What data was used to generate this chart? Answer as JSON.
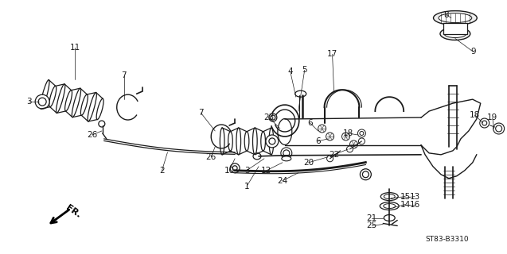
{
  "background_color": "#ffffff",
  "fig_width": 6.37,
  "fig_height": 3.2,
  "dpi": 100,
  "diagram_code": "ST83-B3310",
  "line_color": "#1a1a1a",
  "label_fontsize": 7.5
}
